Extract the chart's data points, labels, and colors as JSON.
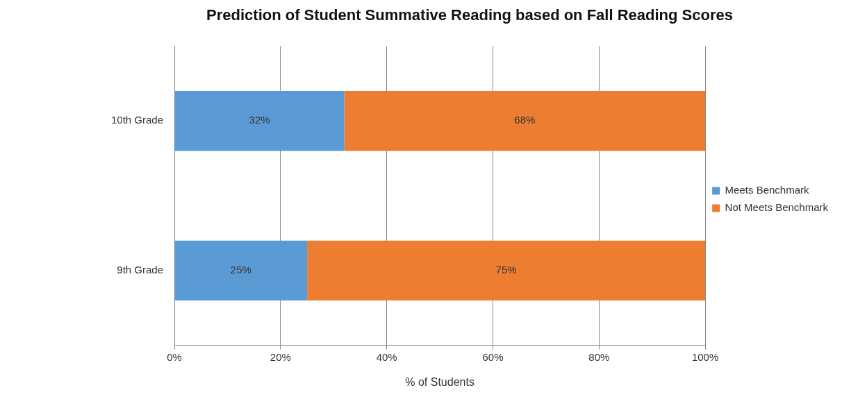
{
  "chart_data": {
    "type": "bar",
    "orientation": "horizontal",
    "stacked": true,
    "title": "Prediction of Student Summative Reading based on Fall Reading Scores",
    "xlabel": "% of Students",
    "categories": [
      "10th Grade",
      "9th Grade"
    ],
    "series": [
      {
        "name": "Meets Benchmark",
        "color": "#5b9bd5",
        "values": [
          32,
          25
        ],
        "value_labels": [
          "32%",
          "25%"
        ]
      },
      {
        "name": "Not Meets Benchmark",
        "color": "#ed7d31",
        "values": [
          68,
          75
        ],
        "value_labels": [
          "68%",
          "75%"
        ]
      }
    ],
    "xlim": [
      0,
      100
    ],
    "xticks": [
      {
        "value": 0,
        "label": "0%"
      },
      {
        "value": 20,
        "label": "20%"
      },
      {
        "value": 40,
        "label": "40%"
      },
      {
        "value": 60,
        "label": "60%"
      },
      {
        "value": 80,
        "label": "80%"
      },
      {
        "value": 100,
        "label": "100%"
      }
    ],
    "grid": "x",
    "legend": "right"
  }
}
